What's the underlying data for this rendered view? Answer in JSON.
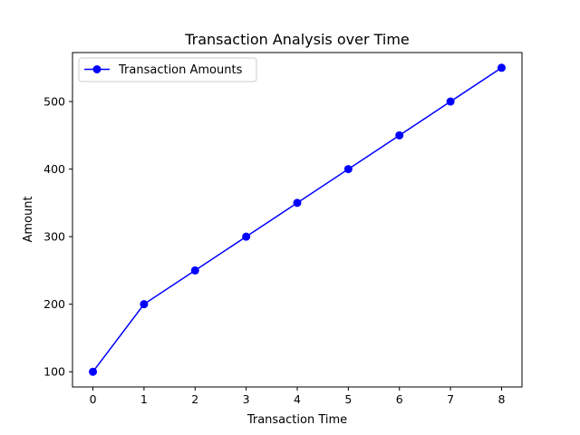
{
  "chart_data": {
    "type": "line",
    "title": "Transaction Analysis over Time",
    "xlabel": "Transaction Time",
    "ylabel": "Amount",
    "x": [
      0,
      1,
      2,
      3,
      4,
      5,
      6,
      7,
      8
    ],
    "series": [
      {
        "name": "Transaction Amounts",
        "values": [
          100,
          200,
          250,
          300,
          350,
          400,
          450,
          500,
          550
        ],
        "color": "#0000ff",
        "marker": "circle"
      }
    ],
    "xlim": [
      -0.4,
      8.4
    ],
    "ylim": [
      77.5,
      572.5
    ],
    "xticks": [
      0,
      1,
      2,
      3,
      4,
      5,
      6,
      7,
      8
    ],
    "yticks": [
      100,
      200,
      300,
      400,
      500
    ],
    "grid": false,
    "legend_position": "upper left"
  }
}
